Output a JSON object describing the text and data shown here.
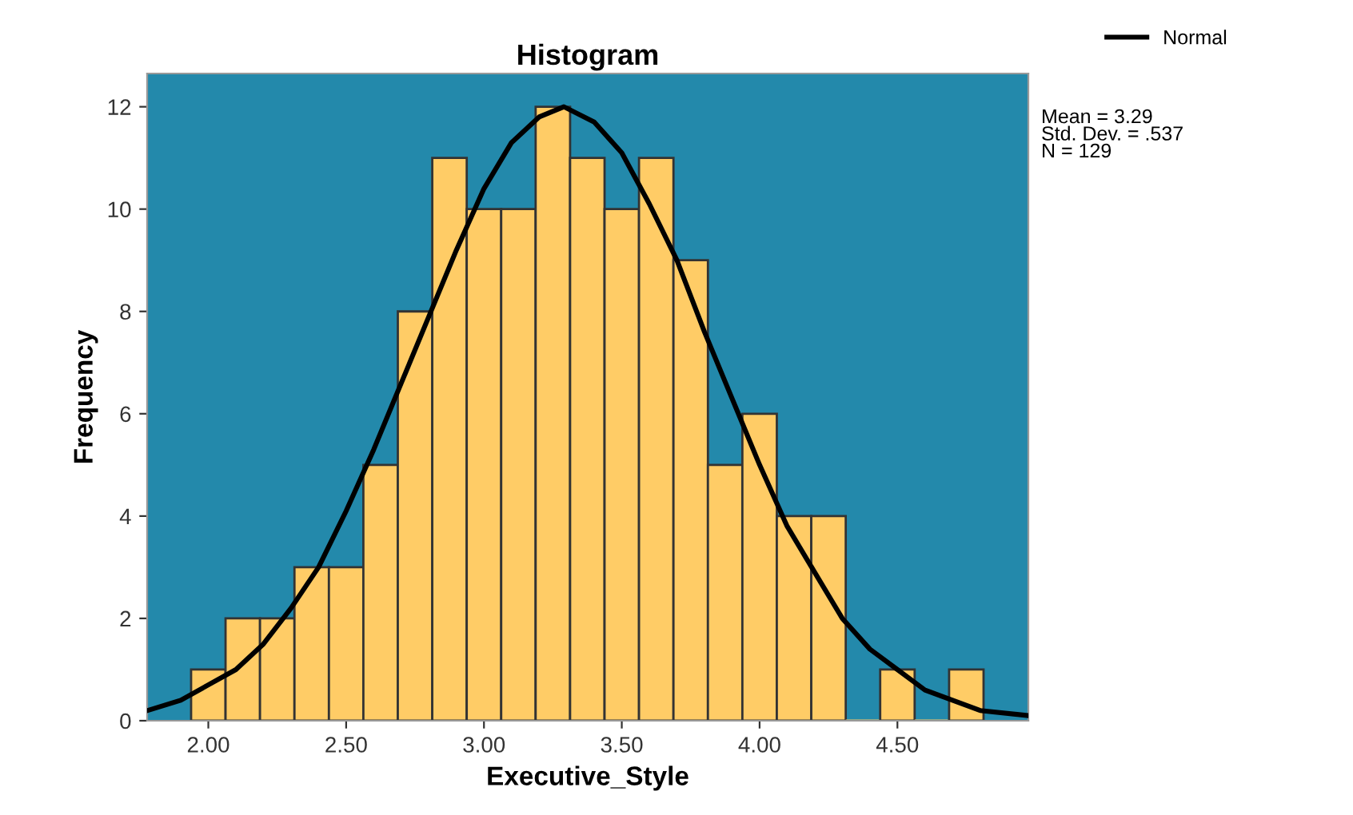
{
  "chart_data": {
    "type": "histogram",
    "title": "Histogram",
    "xlabel": "Executive_Style",
    "ylabel": "Frequency",
    "bins": [
      1.9375,
      2.0625,
      2.1875,
      2.3125,
      2.4375,
      2.5625,
      2.6875,
      2.8125,
      2.9375,
      3.0625,
      3.1875,
      3.3125,
      3.4375,
      3.5625,
      3.6875,
      3.8125,
      3.9375,
      4.0625,
      4.1875,
      4.3125,
      4.4375,
      4.5625,
      4.6875,
      4.8125
    ],
    "values": [
      1,
      2,
      2,
      3,
      3,
      5,
      8,
      11,
      10,
      10,
      12,
      11,
      10,
      11,
      9,
      5,
      6,
      4,
      4,
      0,
      1,
      0,
      1
    ],
    "color": "#ffcc66",
    "series": [
      {
        "type": "line",
        "name": "Normal",
        "color": "#000000",
        "x": [
          1.78,
          1.9,
          2.0,
          2.1,
          2.2,
          2.3,
          2.4,
          2.5,
          2.6,
          2.7,
          2.8,
          2.9,
          3.0,
          3.1,
          3.2,
          3.29,
          3.4,
          3.5,
          3.6,
          3.7,
          3.8,
          3.9,
          4.0,
          4.1,
          4.2,
          4.3,
          4.4,
          4.5,
          4.6,
          4.7,
          4.8,
          4.975
        ],
        "values": [
          0.2,
          0.4,
          0.7,
          1.0,
          1.5,
          2.2,
          3.0,
          4.1,
          5.3,
          6.6,
          7.9,
          9.2,
          10.4,
          11.3,
          11.8,
          12.0,
          11.7,
          11.1,
          10.1,
          9.0,
          7.6,
          6.3,
          5.0,
          3.8,
          2.9,
          2.0,
          1.4,
          1.0,
          0.6,
          0.4,
          0.2,
          0.1
        ]
      }
    ],
    "annotations": [
      "Mean = 3.29\nStd. Dev. = .537\nN = 129"
    ],
    "xlim": [
      1.778,
      4.975
    ],
    "ylim": [
      0,
      12.65
    ],
    "xticks": [
      {
        "value": 2.0,
        "label": "2.00"
      },
      {
        "value": 2.5,
        "label": "2.50"
      },
      {
        "value": 3.0,
        "label": "3.00"
      },
      {
        "value": 3.5,
        "label": "3.50"
      },
      {
        "value": 4.0,
        "label": "4.00"
      },
      {
        "value": 4.5,
        "label": "4.50"
      }
    ],
    "yticks": [
      0,
      2,
      4,
      6,
      8,
      10,
      12
    ],
    "grid": false,
    "legend": "top right"
  }
}
